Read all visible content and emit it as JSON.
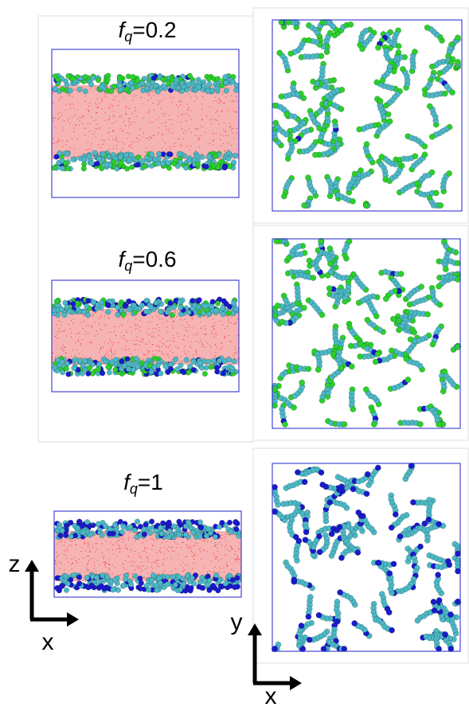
{
  "panels": [
    {
      "label": {
        "symbol": "f",
        "subscript": "q",
        "text": "=0.2"
      }
    },
    {
      "label": {
        "symbol": "f",
        "subscript": "q",
        "text": "=0.6"
      }
    },
    {
      "label": {
        "symbol": "f",
        "subscript": "q",
        "text": "=1"
      }
    }
  ],
  "axes_side": {
    "vertical": "z",
    "horizontal": "x"
  },
  "axes_top": {
    "vertical": "y",
    "horizontal": "x"
  }
}
